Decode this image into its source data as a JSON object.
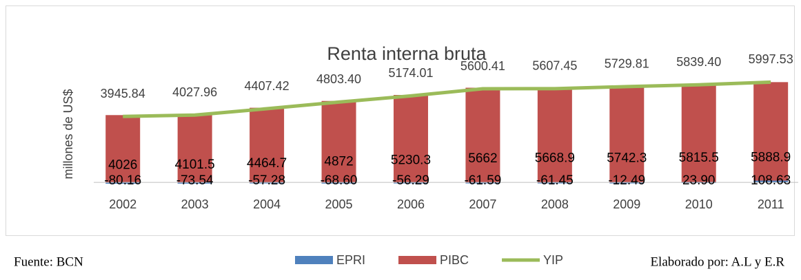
{
  "chart_data": {
    "type": "stacked-bar-line",
    "title": "Renta interna bruta",
    "y_label": "millones de US$",
    "source": "Fuente: BCN",
    "credit": "Elaborado por: A.L y E.R",
    "categories": [
      "2002",
      "2003",
      "2004",
      "2005",
      "2006",
      "2007",
      "2008",
      "2009",
      "2010",
      "2011"
    ],
    "ylim": [
      -200,
      7000
    ],
    "series": [
      {
        "name": "EPRI",
        "type": "bar",
        "color": "#4f81bd",
        "values": [
          -80.16,
          -73.54,
          -57.28,
          -68.6,
          -56.29,
          -61.59,
          -61.45,
          -12.49,
          23.9,
          108.63
        ],
        "value_labels": [
          "-80.16",
          "-73.54",
          "-57.28",
          "-68.60",
          "-56.29",
          "-61.59",
          "-61.45",
          "-12.49",
          "23.90",
          "108.63"
        ]
      },
      {
        "name": "PIBC",
        "type": "bar",
        "color": "#c0504d",
        "values": [
          4026,
          4101.5,
          4464.7,
          4872,
          5230.3,
          5662,
          5668.9,
          5742.3,
          5815.5,
          5888.9
        ]
      },
      {
        "name": "YIP",
        "type": "line",
        "color": "#9bbb59",
        "values": [
          3945.84,
          4027.96,
          4407.42,
          4803.4,
          5174.01,
          5600.41,
          5607.45,
          5729.81,
          5839.4,
          5997.53
        ],
        "value_labels": [
          "3945.84",
          "4027.96",
          "4407.42",
          "4803.40",
          "5174.01",
          "5600.41",
          "5607.45",
          "5729.81",
          "5839.40",
          "5997.53"
        ]
      }
    ]
  }
}
